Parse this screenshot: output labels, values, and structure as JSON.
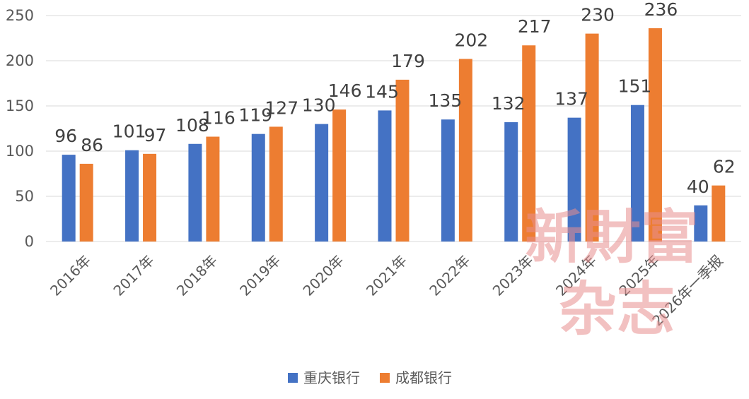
{
  "chart_data": {
    "type": "bar",
    "categories": [
      "2016年",
      "2017年",
      "2018年",
      "2019年",
      "2020年",
      "2021年",
      "2022年",
      "2023年",
      "2024年",
      "2025年",
      "2026年一季报"
    ],
    "series": [
      {
        "name": "重庆银行",
        "color": "#4472c4",
        "values": [
          96,
          101,
          108,
          119,
          130,
          145,
          135,
          132,
          137,
          151,
          40
        ]
      },
      {
        "name": "成都银行",
        "color": "#ed7d31",
        "values": [
          86,
          97,
          116,
          127,
          146,
          179,
          202,
          217,
          230,
          236,
          62
        ]
      }
    ],
    "ylim": [
      0,
      250
    ],
    "yticks": [
      "0",
      "50",
      "100",
      "150",
      "200",
      "250"
    ],
    "grid": true,
    "legend_position": "bottom",
    "title": "",
    "xlabel": "",
    "ylabel": ""
  },
  "watermark": {
    "line1": "新財富",
    "line2": "杂志"
  }
}
